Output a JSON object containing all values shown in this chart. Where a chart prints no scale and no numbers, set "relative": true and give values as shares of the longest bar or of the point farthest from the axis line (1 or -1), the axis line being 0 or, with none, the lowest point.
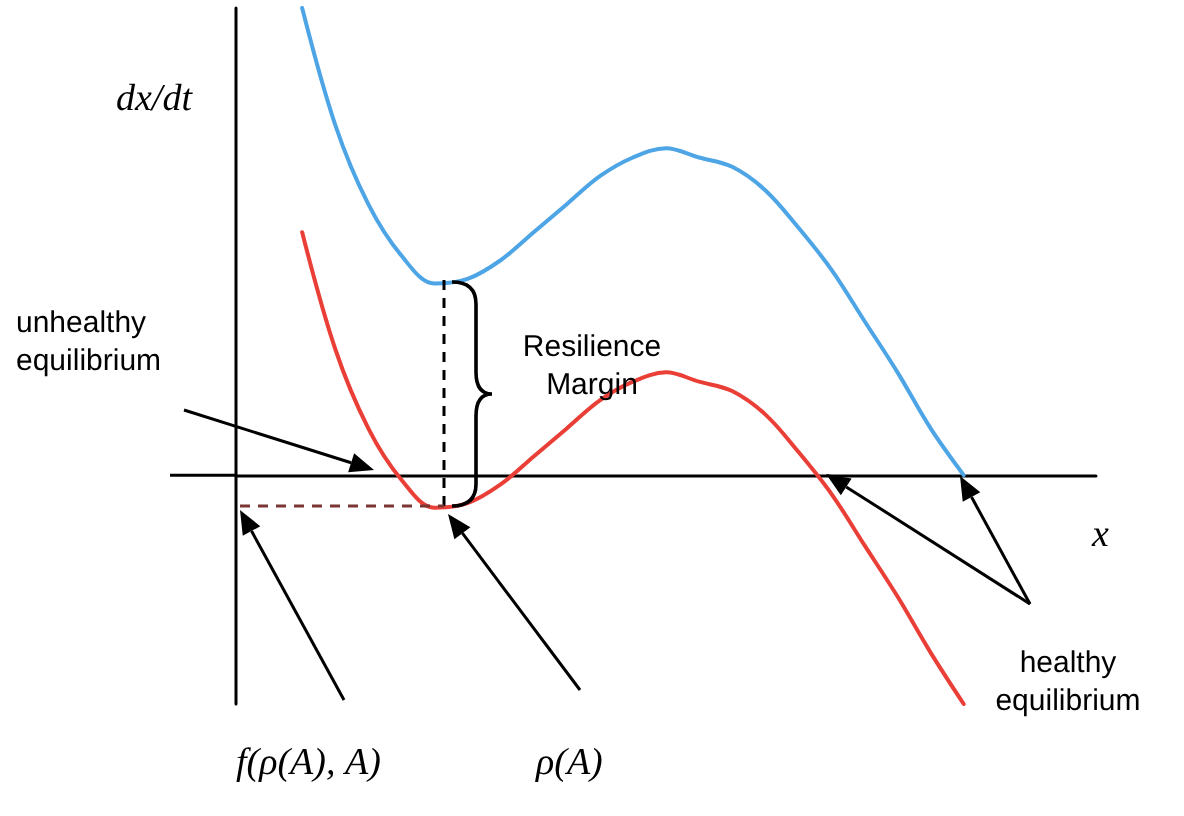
{
  "chart_data": {
    "type": "line",
    "relative": true,
    "ylabel": "dx/dt",
    "xlabel": "x",
    "categories": [
      null,
      null,
      null,
      null,
      null,
      null,
      null,
      null,
      null,
      null,
      null,
      null,
      null,
      null,
      null,
      null,
      null,
      null,
      null,
      null,
      null,
      null,
      null,
      null,
      null,
      null,
      null
    ],
    "series": [
      {
        "color": "#4ea5e6",
        "values": [
          null,
          null,
          1,
          0.75,
          0.58,
          0.47,
          0.41,
          0.42,
          0.46,
          0.52,
          0.58,
          0.64,
          0.68,
          0.7,
          0.68,
          0.66,
          0.61,
          0.53,
          0.44,
          0.33,
          0.22,
          0.1,
          0,
          null,
          null,
          null,
          null
        ]
      },
      {
        "color": "#ea3f37",
        "values": [
          null,
          null,
          0.52,
          0.27,
          0.1,
          -0.01,
          -0.07,
          -0.06,
          -0.02,
          0.04,
          0.1,
          0.16,
          0.2,
          0.22,
          0.2,
          0.18,
          0.13,
          0.05,
          -0.04,
          -0.15,
          -0.26,
          -0.38,
          -0.49,
          null,
          null,
          null,
          null
        ]
      }
    ],
    "annotations": [
      "unhealthy equilibrium",
      "Resilience Margin",
      "healthy equilibrium",
      "f(ρ(A), A)",
      "ρ(A)"
    ],
    "grid": false,
    "marker": "none",
    "line_style": "solid"
  }
}
